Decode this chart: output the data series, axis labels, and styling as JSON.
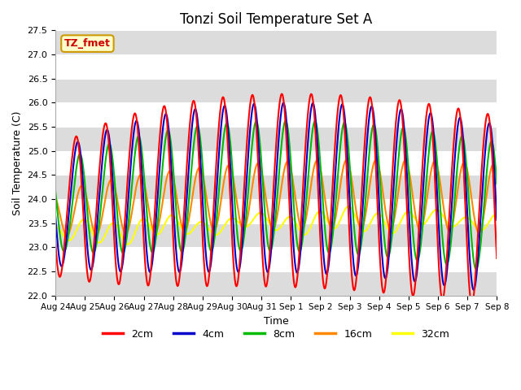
{
  "title": "Tonzi Soil Temperature Set A",
  "xlabel": "Time",
  "ylabel": "Soil Temperature (C)",
  "ylim": [
    22.0,
    27.5
  ],
  "yticks": [
    22.0,
    22.5,
    23.0,
    23.5,
    24.0,
    24.5,
    25.0,
    25.5,
    26.0,
    26.5,
    27.0,
    27.5
  ],
  "xtick_labels": [
    "Aug 24",
    "Aug 25",
    "Aug 26",
    "Aug 27",
    "Aug 28",
    "Aug 29",
    "Aug 30",
    "Aug 31",
    "Sep 1",
    "Sep 2",
    "Sep 3",
    "Sep 4",
    "Sep 5",
    "Sep 6",
    "Sep 7",
    "Sep 8"
  ],
  "line_colors": [
    "#ff0000",
    "#0000cc",
    "#00bb00",
    "#ff8800",
    "#ffff00"
  ],
  "line_labels": [
    "2cm",
    "4cm",
    "8cm",
    "16cm",
    "32cm"
  ],
  "annotation_text": "TZ_fmet",
  "annotation_color": "#cc0000",
  "annotation_bg": "#ffffcc",
  "bg_color": "#ffffff",
  "band_color": "#dcdcdc",
  "line_width": 1.5,
  "n_points": 1440
}
